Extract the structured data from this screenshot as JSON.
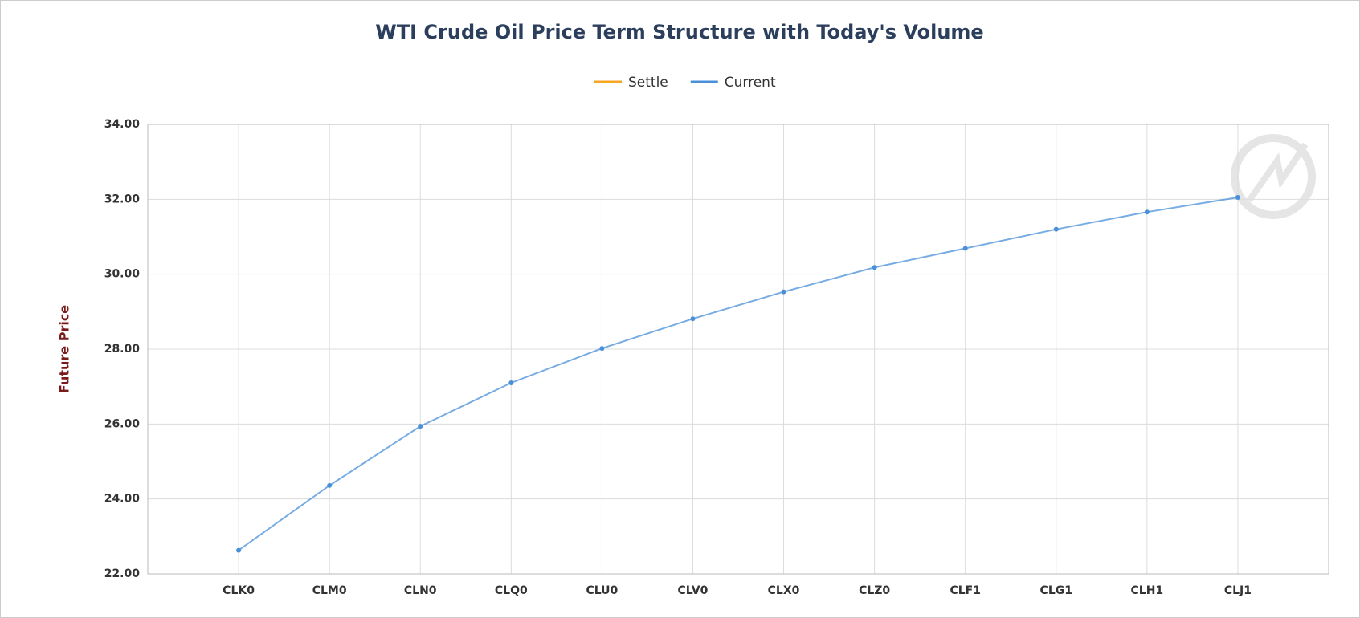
{
  "chart_data": {
    "type": "line",
    "title": "WTI Crude Oil Price Term Structure with Today's Volume",
    "y_label": "Future Price",
    "categories": [
      "CLK0",
      "CLM0",
      "CLN0",
      "CLQ0",
      "CLU0",
      "CLV0",
      "CLX0",
      "CLZ0",
      "CLF1",
      "CLG1",
      "CLH1",
      "CLJ1"
    ],
    "series": [
      {
        "name": "Settle",
        "color": "#f5a623",
        "values": [
          null,
          null,
          null,
          null,
          null,
          null,
          null,
          null,
          null,
          null,
          null,
          null
        ]
      },
      {
        "name": "Current",
        "color": "#4a90d9",
        "values": [
          22.63,
          24.36,
          25.94,
          27.1,
          28.02,
          28.81,
          29.53,
          30.18,
          30.69,
          31.2,
          31.66,
          32.05
        ]
      }
    ],
    "ylim": [
      22,
      34
    ],
    "yticks": [
      {
        "value": 22,
        "label": "22.00"
      },
      {
        "value": 24,
        "label": "24.00"
      },
      {
        "value": 26,
        "label": "26.00"
      },
      {
        "value": 28,
        "label": "28.00"
      },
      {
        "value": 30,
        "label": "30.00"
      },
      {
        "value": 32,
        "label": "32.00"
      },
      {
        "value": 34,
        "label": "34.00"
      }
    ],
    "grid": true,
    "legend": "top"
  }
}
